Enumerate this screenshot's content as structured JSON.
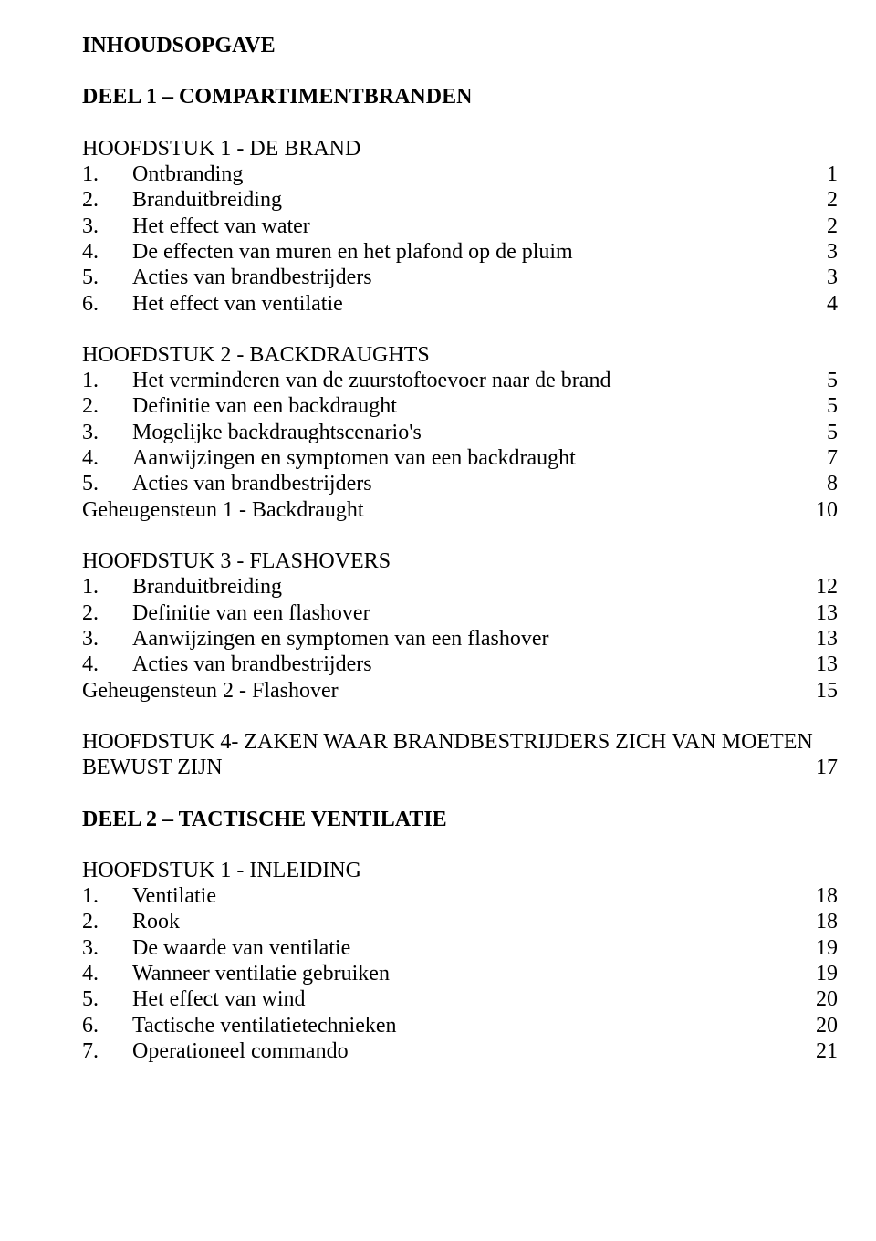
{
  "page": {
    "bg_color": "#ffffff",
    "text_color": "#000000",
    "font_family": "Times New Roman",
    "base_fontsize": 24
  },
  "title": "INHOUDSOPGAVE",
  "parts": [
    {
      "heading": "DEEL 1 – COMPARTIMENTBRANDEN",
      "chapters": [
        {
          "heading": "HOOFDSTUK 1 - DE BRAND",
          "entries": [
            {
              "num": "1.",
              "text": "Ontbranding",
              "page": "1"
            },
            {
              "num": "2.",
              "text": "Branduitbreiding",
              "page": "2"
            },
            {
              "num": "3.",
              "text": "Het effect van water",
              "page": "2"
            },
            {
              "num": "4.",
              "text": "De effecten van muren en het plafond op de pluim",
              "page": "3"
            },
            {
              "num": "5.",
              "text": "Acties van brandbestrijders",
              "page": "3"
            },
            {
              "num": "6.",
              "text": "Het effect van ventilatie",
              "page": "4"
            }
          ]
        },
        {
          "heading": "HOOFDSTUK 2 - BACKDRAUGHTS",
          "entries": [
            {
              "num": "1.",
              "text": "Het verminderen van de zuurstoftoevoer naar de brand",
              "page": "5"
            },
            {
              "num": "2.",
              "text": "Definitie van een backdraught",
              "page": "5"
            },
            {
              "num": "3.",
              "text": "Mogelijke backdraughtscenario's",
              "page": "5"
            },
            {
              "num": "4.",
              "text": "Aanwijzingen en symptomen van een backdraught",
              "page": "7"
            },
            {
              "num": "5.",
              "text": "Acties van brandbestrijders",
              "page": "8"
            },
            {
              "num": "",
              "text": "Geheugensteun 1 -  Backdraught",
              "page": "10"
            }
          ]
        },
        {
          "heading": "HOOFDSTUK 3 - FLASHOVERS",
          "entries": [
            {
              "num": "1.",
              "text": "Branduitbreiding",
              "page": "12"
            },
            {
              "num": "2.",
              "text": "Definitie van een flashover",
              "page": "13"
            },
            {
              "num": "3.",
              "text": "Aanwijzingen en symptomen van een flashover",
              "page": "13"
            },
            {
              "num": "4.",
              "text": "Acties van brandbestrijders",
              "page": "13"
            },
            {
              "num": "",
              "text": "Geheugensteun 2 -  Flashover",
              "page": "15"
            }
          ]
        },
        {
          "heading_with_page": {
            "line1": "HOOFDSTUK 4-  ZAKEN WAAR BRANDBESTRIJDERS ZICH VAN MOETEN",
            "line2": "BEWUST ZIJN",
            "page": "17"
          }
        }
      ]
    },
    {
      "heading": "DEEL 2 – TACTISCHE VENTILATIE",
      "chapters": [
        {
          "heading": "HOOFDSTUK 1 - INLEIDING",
          "entries": [
            {
              "num": "1.",
              "text": "Ventilatie",
              "page": "18"
            },
            {
              "num": "2.",
              "text": "Rook",
              "page": "18"
            },
            {
              "num": "3.",
              "text": "De waarde van ventilatie",
              "page": "19"
            },
            {
              "num": "4.",
              "text": "Wanneer ventilatie gebruiken",
              "page": "19"
            },
            {
              "num": "5.",
              "text": "Het effect van wind",
              "page": "20"
            },
            {
              "num": "6.",
              "text": "Tactische ventilatietechnieken",
              "page": "20"
            },
            {
              "num": "7.",
              "text": "Operationeel commando",
              "page": "21"
            }
          ]
        }
      ]
    }
  ]
}
